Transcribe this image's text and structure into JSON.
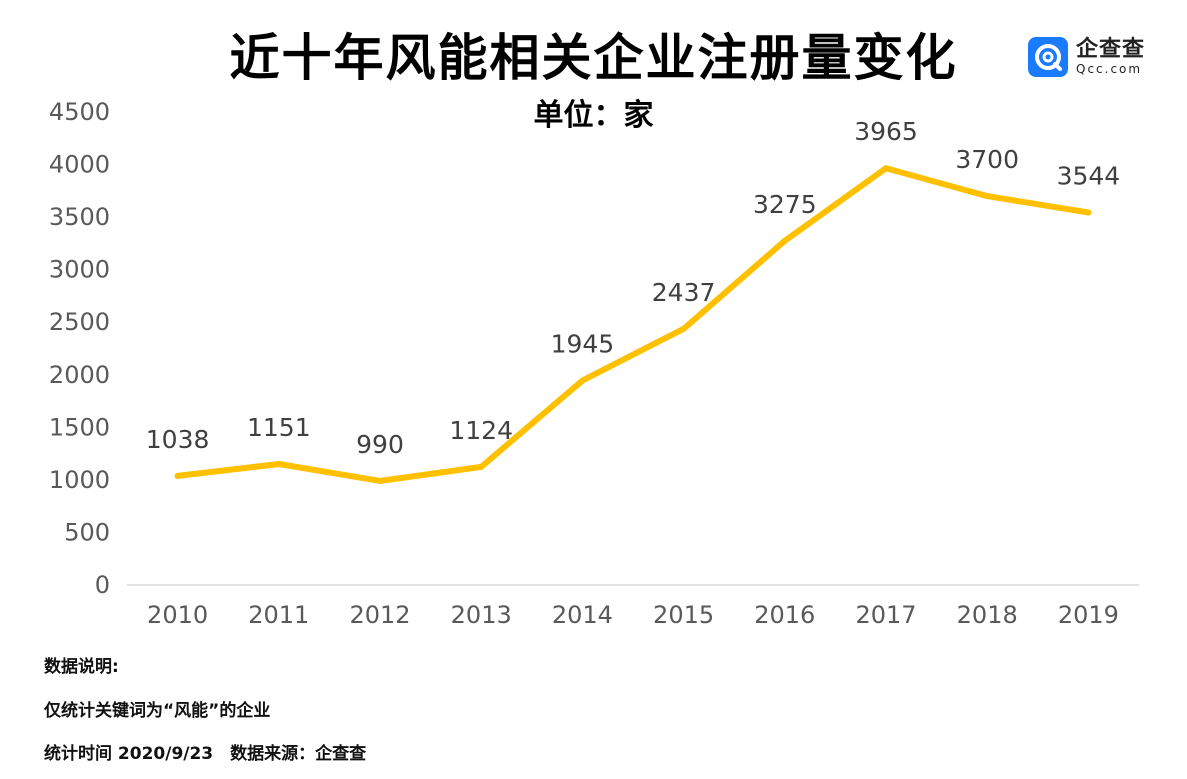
{
  "header": {
    "title": "近十年风能相关企业注册量变化",
    "subtitle": "单位：家"
  },
  "logo": {
    "icon": "qcc-logo-icon",
    "name": "企查查",
    "domain": "Qcc.com",
    "color": "#1a7bff"
  },
  "colors": {
    "line": "#ffc000",
    "axis": "#d9d9d9",
    "ticks": "#595959",
    "labels": "#404040"
  },
  "chart_data": {
    "type": "line",
    "title": "近十年风能相关企业注册量变化",
    "subtitle": "单位：家",
    "categories": [
      "2010",
      "2011",
      "2012",
      "2013",
      "2014",
      "2015",
      "2016",
      "2017",
      "2018",
      "2019"
    ],
    "series": [
      {
        "values": [
          1038,
          1151,
          990,
          1124,
          1945,
          2437,
          3275,
          3965,
          3700,
          3544
        ]
      }
    ],
    "ylim": [
      0,
      4500
    ],
    "yticks": [
      0,
      500,
      1000,
      1500,
      2000,
      2500,
      3000,
      3500,
      4000,
      4500
    ],
    "grid": false,
    "data_labels": true
  },
  "notes": {
    "heading": "数据说明:",
    "line1": "仅统计关键词为“风能”的企业",
    "line2": "统计时间 2020/9/23　数据来源：企查查"
  }
}
